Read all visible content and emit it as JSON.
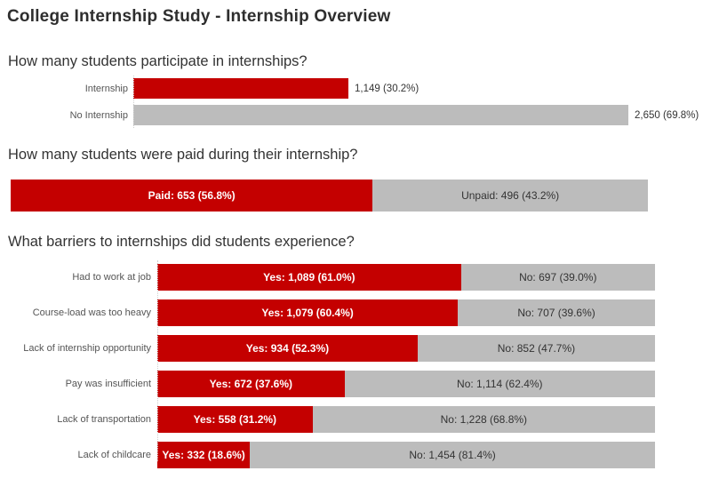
{
  "title": "College Internship Study - Internship Overview",
  "colors": {
    "bar_red": "#C40000",
    "bar_gray": "#BCBCBC",
    "heading_text": "#333333",
    "label_text": "#555555",
    "inside_label_on_red": "#FFFFFF",
    "inside_label_on_gray": "#333333"
  },
  "chart_data": [
    {
      "type": "bar",
      "title": "How many students participate in internships?",
      "categories": [
        "Internship",
        "No Internship"
      ],
      "values": [
        1149,
        2650
      ],
      "percents": [
        30.2,
        69.8
      ],
      "value_labels": [
        "1,149 (30.2%)",
        "2,650 (69.8%)"
      ],
      "bar_colors": [
        "#C40000",
        "#BCBCBC"
      ],
      "xlim": [
        0,
        2650
      ],
      "orientation": "horizontal",
      "grid": false,
      "legend": "none"
    },
    {
      "type": "stacked-bar",
      "title": "How many students were paid during their internship?",
      "segments": [
        {
          "name": "Paid",
          "value": 653,
          "pct": 56.8,
          "label": "Paid: 653 (56.8%)",
          "color": "#C40000",
          "text_color": "#FFFFFF"
        },
        {
          "name": "Unpaid",
          "value": 496,
          "pct": 43.2,
          "label": "Unpaid: 496 (43.2%)",
          "color": "#BCBCBC",
          "text_color": "#333333"
        }
      ],
      "orientation": "horizontal",
      "grid": false,
      "legend": "none"
    },
    {
      "type": "stacked-bar",
      "title": "What barriers to internships did students experience?",
      "categories": [
        "Had to work at job",
        "Course-load was too heavy",
        "Lack of internship opportunity",
        "Pay was insufficient",
        "Lack of transportation",
        "Lack of childcare"
      ],
      "series": [
        {
          "name": "Yes",
          "color": "#C40000",
          "values": [
            1089,
            1079,
            934,
            672,
            558,
            332
          ],
          "pcts": [
            61.0,
            60.4,
            52.3,
            37.6,
            31.2,
            18.6
          ],
          "labels": [
            "Yes: 1,089 (61.0%)",
            "Yes: 1,079 (60.4%)",
            "Yes: 934 (52.3%)",
            "Yes: 672 (37.6%)",
            "Yes: 558 (31.2%)",
            "Yes: 332 (18.6%)"
          ]
        },
        {
          "name": "No",
          "color": "#BCBCBC",
          "values": [
            697,
            707,
            852,
            1114,
            1228,
            1454
          ],
          "pcts": [
            39.0,
            39.6,
            47.7,
            62.4,
            68.8,
            81.4
          ],
          "labels": [
            "No: 697 (39.0%)",
            "No: 707 (39.6%)",
            "No: 852 (47.7%)",
            "No: 1,114 (62.4%)",
            "No: 1,228 (68.8%)",
            "No: 1,454 (81.4%)"
          ]
        }
      ],
      "orientation": "horizontal",
      "grid": false,
      "legend": "none"
    }
  ]
}
